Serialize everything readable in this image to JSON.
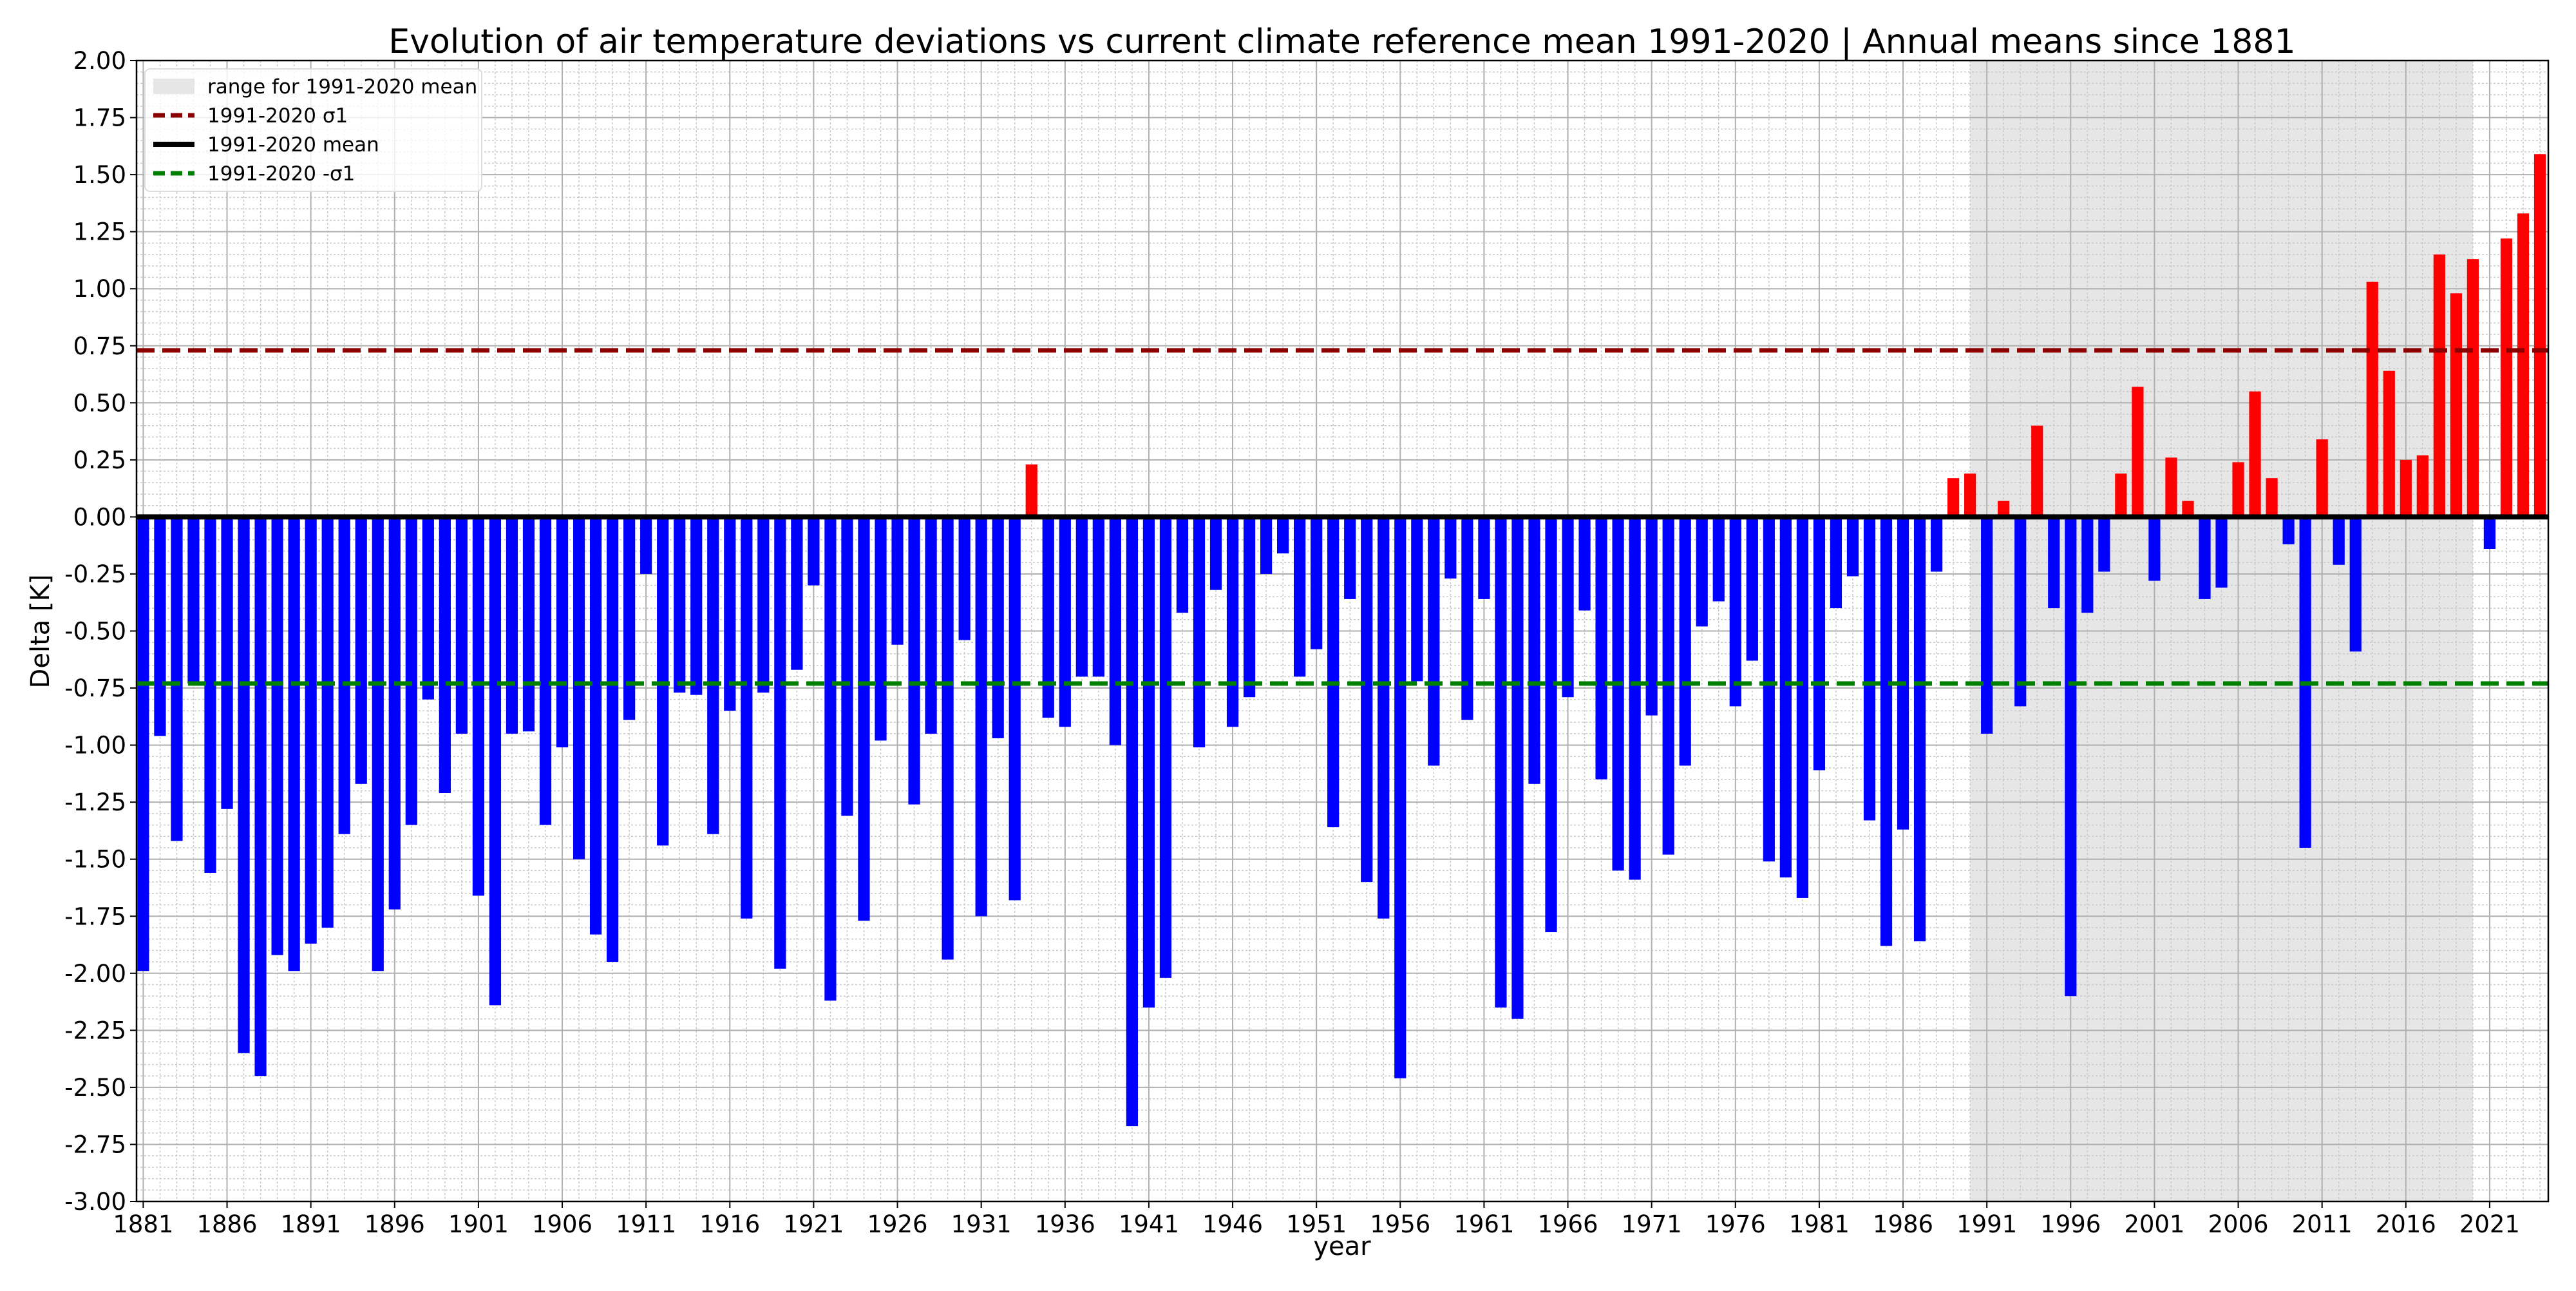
{
  "chart_data": {
    "type": "bar",
    "title": "Evolution of air temperature deviations vs current climate reference mean 1991-2020 | Annual means since 1881",
    "xlabel": "year",
    "ylabel": "Delta [K]",
    "xlim": [
      1880.6,
      2024.5
    ],
    "ylim": [
      -3.0,
      2.0
    ],
    "grid": true,
    "legend_position": "top-left",
    "x_ticks": [
      1881,
      1886,
      1891,
      1896,
      1901,
      1906,
      1911,
      1916,
      1921,
      1926,
      1931,
      1936,
      1941,
      1946,
      1951,
      1956,
      1961,
      1966,
      1971,
      1976,
      1981,
      1986,
      1991,
      1996,
      2001,
      2006,
      2011,
      2016,
      2021
    ],
    "y_ticks": [
      "2.00",
      "1.75",
      "1.50",
      "1.25",
      "1.00",
      "0.75",
      "0.50",
      "0.25",
      "0.00",
      "-0.25",
      "-0.50",
      "-0.75",
      "-1.00",
      "-1.25",
      "-1.50",
      "-1.75",
      "-2.00",
      "-2.25",
      "-2.50",
      "-2.75",
      "-3.00"
    ],
    "colors": {
      "positive": "#ff0000",
      "negative": "#0000ff",
      "sigma_plus": "#8b0000",
      "mean": "#000000",
      "sigma_minus": "#008000",
      "range": "#e6e6e6"
    },
    "reference_range": [
      1990,
      2020
    ],
    "sigma": 0.73,
    "legend": [
      {
        "label": "range for 1991-2020 mean",
        "kind": "range"
      },
      {
        "label": "1991-2020 σ1",
        "kind": "sigma_plus"
      },
      {
        "label": "1991-2020 mean",
        "kind": "mean"
      },
      {
        "label": "1991-2020 -σ1",
        "kind": "sigma_minus"
      }
    ],
    "start_year": 1881,
    "years": "1881-2024",
    "values": [
      -1.99,
      -0.96,
      -1.42,
      -0.73,
      -1.56,
      -1.28,
      -2.35,
      -2.45,
      -1.92,
      -1.99,
      -1.87,
      -1.8,
      -1.39,
      -1.17,
      -1.99,
      -1.72,
      -1.35,
      -0.8,
      -1.21,
      -0.95,
      -1.66,
      -2.14,
      -0.95,
      -0.94,
      -1.35,
      -1.01,
      -1.5,
      -1.83,
      -1.95,
      -0.89,
      -0.25,
      -1.44,
      -0.77,
      -0.78,
      -1.39,
      -0.85,
      -1.76,
      -0.77,
      -1.98,
      -0.67,
      -0.3,
      -2.12,
      -1.31,
      -1.77,
      -0.98,
      -0.56,
      -1.26,
      -0.95,
      -1.94,
      -0.54,
      -1.75,
      -0.97,
      -1.68,
      0.23,
      -0.88,
      -0.92,
      -0.7,
      -0.7,
      -1.0,
      -2.67,
      -2.15,
      -2.02,
      -0.42,
      -1.01,
      -0.32,
      -0.92,
      -0.79,
      -0.25,
      -0.16,
      -0.7,
      -0.58,
      -1.36,
      -0.36,
      -1.6,
      -1.76,
      -2.46,
      -0.72,
      -1.09,
      -0.27,
      -0.89,
      -0.36,
      -2.15,
      -2.2,
      -1.17,
      -1.82,
      -0.79,
      -0.41,
      -1.15,
      -1.55,
      -1.59,
      -0.87,
      -1.48,
      -1.09,
      -0.48,
      -0.37,
      -0.83,
      -0.63,
      -1.51,
      -1.58,
      -1.67,
      -1.11,
      -0.4,
      -0.26,
      -1.33,
      -1.88,
      -1.37,
      -1.86,
      -0.24,
      0.17,
      0.19,
      -0.95,
      0.07,
      -0.83,
      0.4,
      -0.4,
      -2.1,
      -0.42,
      -0.24,
      0.19,
      0.57,
      -0.28,
      0.26,
      0.07,
      -0.36,
      -0.31,
      0.24,
      0.55,
      0.17,
      -0.12,
      -1.45,
      0.34,
      -0.21,
      -0.59,
      1.03,
      0.64,
      0.25,
      0.27,
      1.15,
      0.98,
      1.13,
      -0.14,
      1.22,
      1.33,
      1.59
    ]
  }
}
